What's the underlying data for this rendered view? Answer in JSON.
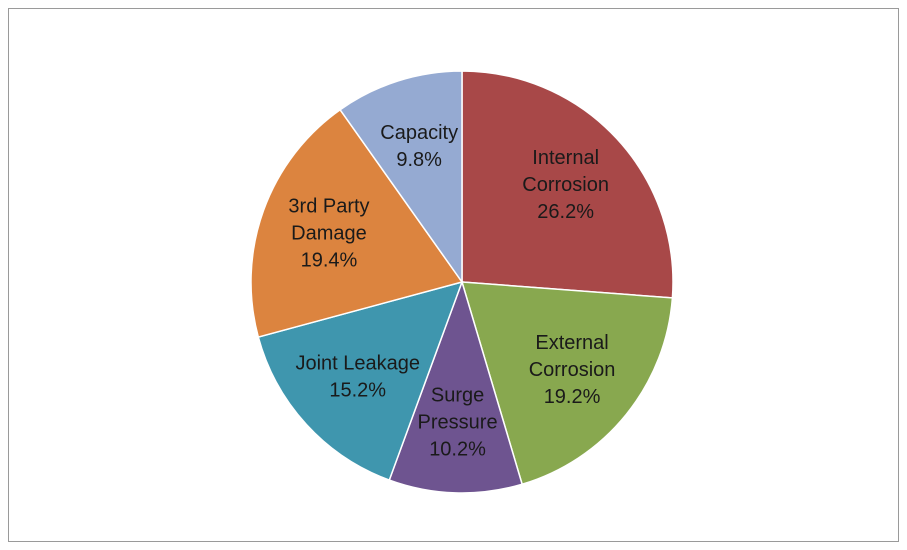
{
  "chart_data": {
    "type": "pie",
    "title": "",
    "legend": "none",
    "slices": [
      {
        "name": "Internal Corrosion",
        "label_lines": [
          "Internal",
          "Corrosion",
          "26.2%"
        ],
        "value": 26.2,
        "color": "#A84848"
      },
      {
        "name": "External Corrosion",
        "label_lines": [
          "External",
          "Corrosion",
          "19.2%"
        ],
        "value": 19.2,
        "color": "#88A84F"
      },
      {
        "name": "Surge Pressure",
        "label_lines": [
          "Surge",
          "Pressure",
          "10.2%"
        ],
        "value": 10.2,
        "color": "#6E5490"
      },
      {
        "name": "Joint Leakage",
        "label_lines": [
          "Joint Leakage",
          "15.2%"
        ],
        "value": 15.2,
        "color": "#3F96AE"
      },
      {
        "name": "3rd Party Damage",
        "label_lines": [
          "3rd Party",
          "Damage",
          "19.4%"
        ],
        "value": 19.4,
        "color": "#DC843F"
      },
      {
        "name": "Capacity",
        "label_lines": [
          "Capacity",
          "9.8%"
        ],
        "value": 9.8,
        "color": "#95AAD2"
      }
    ]
  }
}
